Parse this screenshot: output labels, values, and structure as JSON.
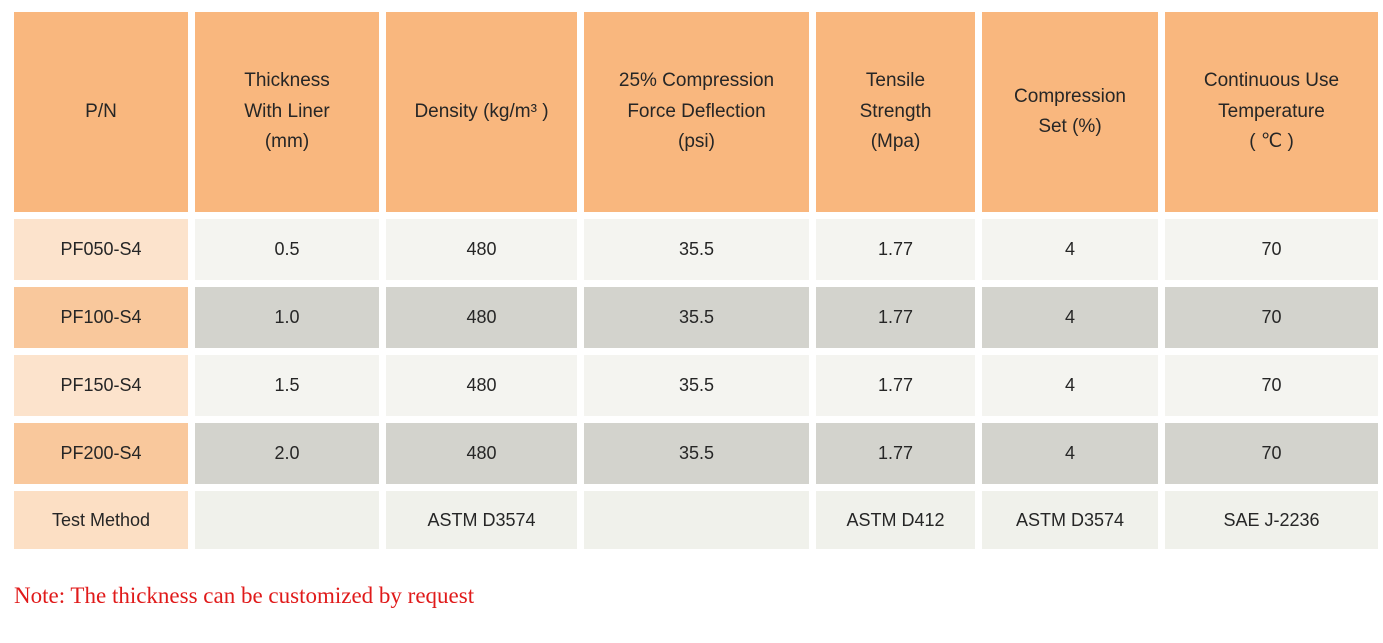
{
  "table": {
    "columns": [
      {
        "label": "P/N"
      },
      {
        "label": "Thickness\nWith Liner\n(mm)"
      },
      {
        "label": "Density (kg/m³ )"
      },
      {
        "label": "25% Compression\nForce Deflection\n(psi)"
      },
      {
        "label": "Tensile\nStrength\n(Mpa)"
      },
      {
        "label": "Compression\nSet (%)"
      },
      {
        "label": "Continuous Use\nTemperature\n( ℃ )"
      }
    ],
    "rows": [
      {
        "variant": "light",
        "cells": [
          "PF050-S4",
          "0.5",
          "480",
          "35.5",
          "1.77",
          "4",
          "70"
        ]
      },
      {
        "variant": "dark",
        "cells": [
          "PF100-S4",
          "1.0",
          "480",
          "35.5",
          "1.77",
          "4",
          "70"
        ]
      },
      {
        "variant": "light",
        "cells": [
          "PF150-S4",
          "1.5",
          "480",
          "35.5",
          "1.77",
          "4",
          "70"
        ]
      },
      {
        "variant": "dark",
        "cells": [
          "PF200-S4",
          "2.0",
          "480",
          "35.5",
          "1.77",
          "4",
          "70"
        ]
      },
      {
        "variant": "test",
        "cells": [
          "Test Method",
          "",
          "ASTM D3574",
          "",
          "ASTM D412",
          "ASTM D3574",
          "SAE J-2236"
        ]
      }
    ]
  },
  "note": "Note: The thickness can be customized by request",
  "colors": {
    "header_bg": "#F9B77E",
    "pn_light": "#FCE3CC",
    "pn_mid": "#F9C89C",
    "cell_light": "#F4F4F0",
    "cell_dark": "#D3D3CD",
    "cell_test": "#F0F1EB",
    "note_red": "#E01A1A"
  }
}
